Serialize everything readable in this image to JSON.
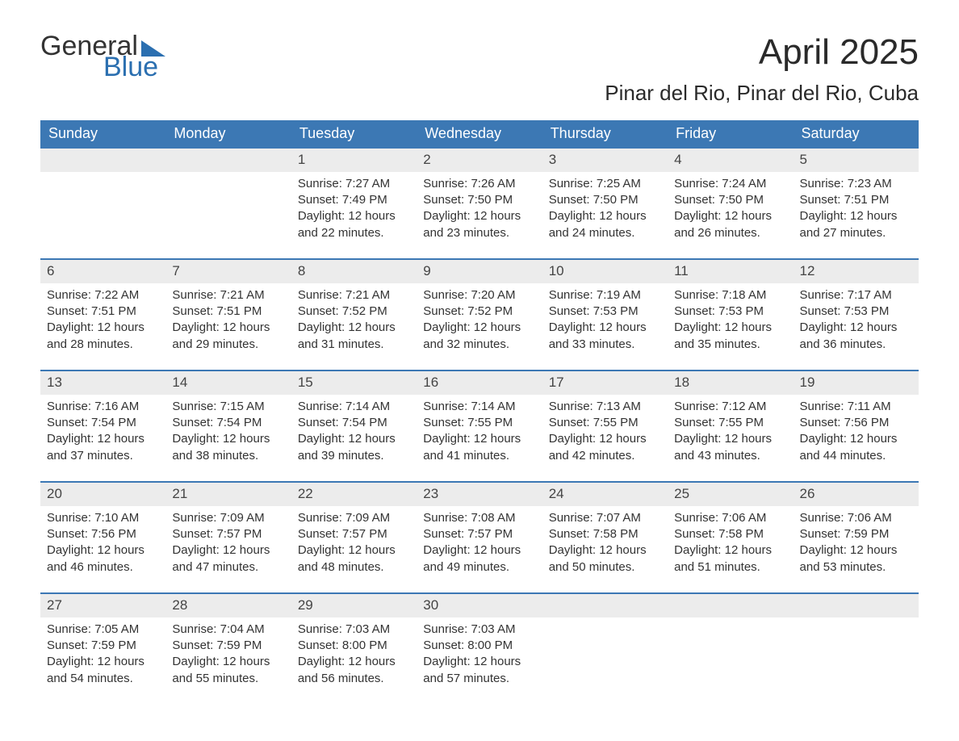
{
  "brand": {
    "word1": "General",
    "word2": "Blue",
    "accent_color": "#2b6fb0"
  },
  "title": "April 2025",
  "location": "Pinar del Rio, Pinar del Rio, Cuba",
  "colors": {
    "header_bg": "#3c78b4",
    "header_text": "#ffffff",
    "daynum_bg": "#ececec",
    "text": "#333333",
    "row_border": "#3c78b4"
  },
  "day_names": [
    "Sunday",
    "Monday",
    "Tuesday",
    "Wednesday",
    "Thursday",
    "Friday",
    "Saturday"
  ],
  "labels": {
    "sunrise": "Sunrise:",
    "sunset": "Sunset:",
    "daylight_prefix": "Daylight:",
    "daylight_unit1": "hours",
    "daylight_joiner": "and",
    "daylight_unit2": "minutes."
  },
  "weeks": [
    [
      null,
      null,
      {
        "d": "1",
        "sunrise": "7:27 AM",
        "sunset": "7:49 PM",
        "dl_h": "12",
        "dl_m": "22"
      },
      {
        "d": "2",
        "sunrise": "7:26 AM",
        "sunset": "7:50 PM",
        "dl_h": "12",
        "dl_m": "23"
      },
      {
        "d": "3",
        "sunrise": "7:25 AM",
        "sunset": "7:50 PM",
        "dl_h": "12",
        "dl_m": "24"
      },
      {
        "d": "4",
        "sunrise": "7:24 AM",
        "sunset": "7:50 PM",
        "dl_h": "12",
        "dl_m": "26"
      },
      {
        "d": "5",
        "sunrise": "7:23 AM",
        "sunset": "7:51 PM",
        "dl_h": "12",
        "dl_m": "27"
      }
    ],
    [
      {
        "d": "6",
        "sunrise": "7:22 AM",
        "sunset": "7:51 PM",
        "dl_h": "12",
        "dl_m": "28"
      },
      {
        "d": "7",
        "sunrise": "7:21 AM",
        "sunset": "7:51 PM",
        "dl_h": "12",
        "dl_m": "29"
      },
      {
        "d": "8",
        "sunrise": "7:21 AM",
        "sunset": "7:52 PM",
        "dl_h": "12",
        "dl_m": "31"
      },
      {
        "d": "9",
        "sunrise": "7:20 AM",
        "sunset": "7:52 PM",
        "dl_h": "12",
        "dl_m": "32"
      },
      {
        "d": "10",
        "sunrise": "7:19 AM",
        "sunset": "7:53 PM",
        "dl_h": "12",
        "dl_m": "33"
      },
      {
        "d": "11",
        "sunrise": "7:18 AM",
        "sunset": "7:53 PM",
        "dl_h": "12",
        "dl_m": "35"
      },
      {
        "d": "12",
        "sunrise": "7:17 AM",
        "sunset": "7:53 PM",
        "dl_h": "12",
        "dl_m": "36"
      }
    ],
    [
      {
        "d": "13",
        "sunrise": "7:16 AM",
        "sunset": "7:54 PM",
        "dl_h": "12",
        "dl_m": "37"
      },
      {
        "d": "14",
        "sunrise": "7:15 AM",
        "sunset": "7:54 PM",
        "dl_h": "12",
        "dl_m": "38"
      },
      {
        "d": "15",
        "sunrise": "7:14 AM",
        "sunset": "7:54 PM",
        "dl_h": "12",
        "dl_m": "39"
      },
      {
        "d": "16",
        "sunrise": "7:14 AM",
        "sunset": "7:55 PM",
        "dl_h": "12",
        "dl_m": "41"
      },
      {
        "d": "17",
        "sunrise": "7:13 AM",
        "sunset": "7:55 PM",
        "dl_h": "12",
        "dl_m": "42"
      },
      {
        "d": "18",
        "sunrise": "7:12 AM",
        "sunset": "7:55 PM",
        "dl_h": "12",
        "dl_m": "43"
      },
      {
        "d": "19",
        "sunrise": "7:11 AM",
        "sunset": "7:56 PM",
        "dl_h": "12",
        "dl_m": "44"
      }
    ],
    [
      {
        "d": "20",
        "sunrise": "7:10 AM",
        "sunset": "7:56 PM",
        "dl_h": "12",
        "dl_m": "46"
      },
      {
        "d": "21",
        "sunrise": "7:09 AM",
        "sunset": "7:57 PM",
        "dl_h": "12",
        "dl_m": "47"
      },
      {
        "d": "22",
        "sunrise": "7:09 AM",
        "sunset": "7:57 PM",
        "dl_h": "12",
        "dl_m": "48"
      },
      {
        "d": "23",
        "sunrise": "7:08 AM",
        "sunset": "7:57 PM",
        "dl_h": "12",
        "dl_m": "49"
      },
      {
        "d": "24",
        "sunrise": "7:07 AM",
        "sunset": "7:58 PM",
        "dl_h": "12",
        "dl_m": "50"
      },
      {
        "d": "25",
        "sunrise": "7:06 AM",
        "sunset": "7:58 PM",
        "dl_h": "12",
        "dl_m": "51"
      },
      {
        "d": "26",
        "sunrise": "7:06 AM",
        "sunset": "7:59 PM",
        "dl_h": "12",
        "dl_m": "53"
      }
    ],
    [
      {
        "d": "27",
        "sunrise": "7:05 AM",
        "sunset": "7:59 PM",
        "dl_h": "12",
        "dl_m": "54"
      },
      {
        "d": "28",
        "sunrise": "7:04 AM",
        "sunset": "7:59 PM",
        "dl_h": "12",
        "dl_m": "55"
      },
      {
        "d": "29",
        "sunrise": "7:03 AM",
        "sunset": "8:00 PM",
        "dl_h": "12",
        "dl_m": "56"
      },
      {
        "d": "30",
        "sunrise": "7:03 AM",
        "sunset": "8:00 PM",
        "dl_h": "12",
        "dl_m": "57"
      },
      null,
      null,
      null
    ]
  ]
}
